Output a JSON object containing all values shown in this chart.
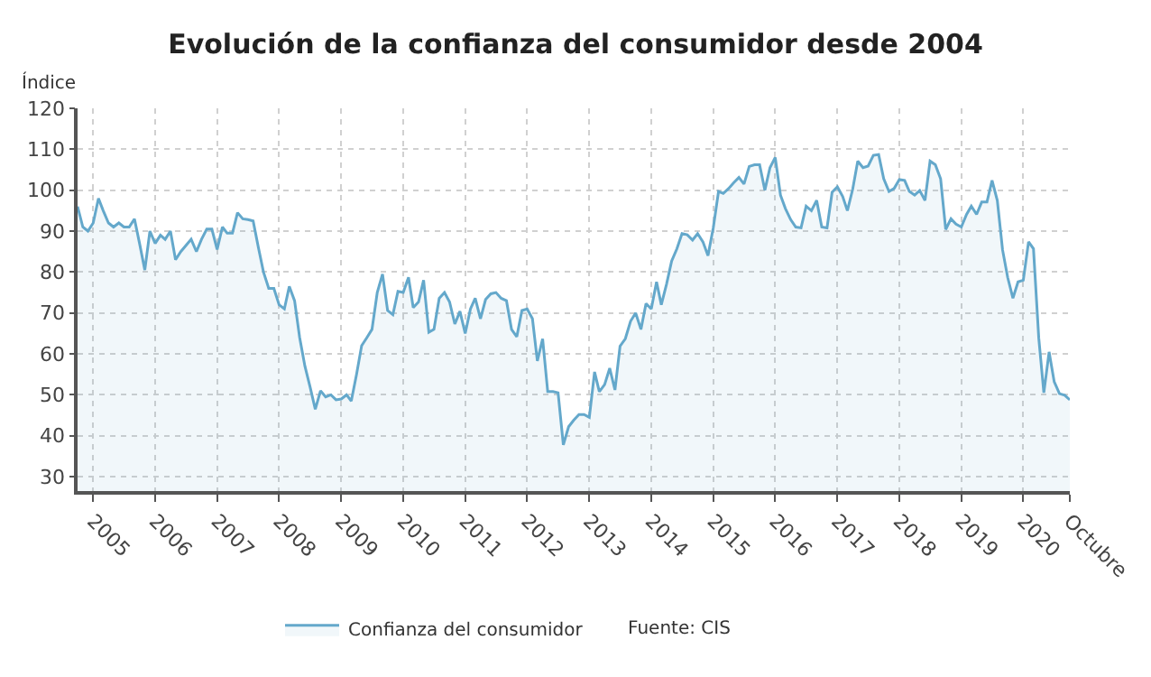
{
  "chart_data": {
    "type": "area",
    "title": "Evolución de la confianza del consumidor desde 2004",
    "ylabel": "Índice",
    "x": [
      "2004-10",
      "2004-11",
      "2004-12",
      "2005-01",
      "2005-02",
      "2005-03",
      "2005-04",
      "2005-05",
      "2005-06",
      "2005-07",
      "2005-08",
      "2005-09",
      "2005-10",
      "2005-11",
      "2005-12",
      "2006-01",
      "2006-02",
      "2006-03",
      "2006-04",
      "2006-05",
      "2006-06",
      "2006-07",
      "2006-08",
      "2006-09",
      "2006-10",
      "2006-11",
      "2006-12",
      "2007-01",
      "2007-02",
      "2007-03",
      "2007-04",
      "2007-05",
      "2007-06",
      "2007-07",
      "2007-08",
      "2007-09",
      "2007-10",
      "2007-11",
      "2007-12",
      "2008-01",
      "2008-02",
      "2008-03",
      "2008-04",
      "2008-05",
      "2008-06",
      "2008-07",
      "2008-08",
      "2008-09",
      "2008-10",
      "2008-11",
      "2008-12",
      "2009-01",
      "2009-02",
      "2009-03",
      "2009-04",
      "2009-05",
      "2009-06",
      "2009-07",
      "2009-08",
      "2009-09",
      "2009-10",
      "2009-11",
      "2009-12",
      "2010-01",
      "2010-02",
      "2010-03",
      "2010-04",
      "2010-05",
      "2010-06",
      "2010-07",
      "2010-08",
      "2010-09",
      "2010-10",
      "2010-11",
      "2010-12",
      "2011-01",
      "2011-02",
      "2011-03",
      "2011-04",
      "2011-05",
      "2011-06",
      "2011-07",
      "2011-08",
      "2011-09",
      "2011-10",
      "2011-11",
      "2011-12",
      "2012-01",
      "2012-02",
      "2012-03",
      "2012-04",
      "2012-05",
      "2012-06",
      "2012-07",
      "2012-08",
      "2012-09",
      "2012-10",
      "2012-11",
      "2012-12",
      "2013-01",
      "2013-02",
      "2013-03",
      "2013-04",
      "2013-05",
      "2013-06",
      "2013-07",
      "2013-08",
      "2013-09",
      "2013-10",
      "2013-11",
      "2013-12",
      "2014-01",
      "2014-02",
      "2014-03",
      "2014-04",
      "2014-05",
      "2014-06",
      "2014-07",
      "2014-08",
      "2014-09",
      "2014-10",
      "2014-11",
      "2014-12",
      "2015-01",
      "2015-02",
      "2015-03",
      "2015-04",
      "2015-05",
      "2015-06",
      "2015-07",
      "2015-08",
      "2015-09",
      "2015-10",
      "2015-11",
      "2015-12",
      "2016-01",
      "2016-02",
      "2016-03",
      "2016-04",
      "2016-05",
      "2016-06",
      "2016-07",
      "2016-08",
      "2016-09",
      "2016-10",
      "2016-11",
      "2016-12",
      "2017-01",
      "2017-02",
      "2017-03",
      "2017-04",
      "2017-05",
      "2017-06",
      "2017-07",
      "2017-08",
      "2017-09",
      "2017-10",
      "2017-11",
      "2017-12",
      "2018-01",
      "2018-02",
      "2018-03",
      "2018-04",
      "2018-05",
      "2018-06",
      "2018-07",
      "2018-08",
      "2018-09",
      "2018-10",
      "2018-11",
      "2018-12",
      "2019-01",
      "2019-02",
      "2019-03",
      "2019-04",
      "2019-05",
      "2019-06",
      "2019-07",
      "2019-08",
      "2019-09",
      "2019-10",
      "2019-11",
      "2019-12",
      "2020-01",
      "2020-02",
      "2020-03",
      "2020-04",
      "2020-05",
      "2020-06",
      "2020-07",
      "2020-08",
      "2020-09",
      "2020-10"
    ],
    "series": [
      {
        "name": "Confianza del consumidor",
        "color": "#64a8cb",
        "values": [
          96,
          91,
          90,
          92,
          98,
          95,
          92,
          91,
          92,
          91,
          91,
          93,
          87,
          80.5,
          90,
          87,
          89,
          88,
          90,
          83,
          85,
          86.5,
          88,
          85,
          88,
          90.5,
          90.5,
          85.5,
          91,
          89.5,
          89.5,
          94.5,
          93,
          92.8,
          92.5,
          86,
          80,
          76,
          76,
          72,
          71,
          76.5,
          73,
          64,
          57,
          52,
          46.5,
          51,
          49.5,
          50,
          48.8,
          49,
          50,
          48.5,
          55,
          62,
          64,
          66,
          75,
          79.5,
          70.6,
          69.6,
          75.3,
          75,
          78.7,
          71.3,
          72.7,
          78,
          65.3,
          66,
          73.6,
          75,
          72.7,
          67.3,
          70.4,
          65,
          71,
          73.6,
          68.6,
          73.3,
          74.7,
          75,
          73.6,
          73,
          66,
          64.2,
          70.6,
          71,
          68.6,
          58.3,
          63.7,
          50.8,
          50.8,
          50.5,
          37.8,
          42.2,
          43.8,
          45.2,
          45.2,
          44.5,
          55.6,
          50.8,
          52.5,
          56.5,
          51.2,
          61.9,
          63.7,
          68,
          70,
          66,
          72.3,
          71,
          77.6,
          72,
          77.1,
          82.7,
          85.7,
          89.4,
          89.1,
          87.8,
          89.4,
          87.4,
          84,
          90.8,
          99.7,
          99.2,
          100.4,
          101.8,
          103.1,
          101.5,
          105.8,
          106.2,
          106.2,
          100,
          105.5,
          108,
          98.8,
          95.5,
          92.8,
          91,
          90.8,
          96.1,
          95,
          97.5,
          91,
          90.8,
          99.5,
          100.8,
          98.5,
          95,
          100.2,
          107.1,
          105.5,
          105.9,
          108.5,
          108.7,
          102.8,
          99.7,
          100.4,
          102.6,
          102.4,
          99.7,
          98.8,
          99.9,
          97.5,
          107.1,
          106.2,
          102.8,
          90.4,
          93,
          91.7,
          91,
          94.1,
          96.1,
          94.1,
          97.1,
          97.1,
          102.4,
          97.5,
          85.4,
          78.7,
          73.6,
          77.6,
          78,
          87.4,
          85.7,
          63.9,
          50.5,
          60.5,
          53.2,
          50.3,
          49.9,
          48.8
        ]
      }
    ],
    "xlim": [
      "2004-10",
      "2020-10"
    ],
    "xticks": [
      {
        "value": "2005-01",
        "label": "2005"
      },
      {
        "value": "2006-01",
        "label": "2006"
      },
      {
        "value": "2007-01",
        "label": "2007"
      },
      {
        "value": "2008-01",
        "label": "2008"
      },
      {
        "value": "2009-01",
        "label": "2009"
      },
      {
        "value": "2010-01",
        "label": "2010"
      },
      {
        "value": "2011-01",
        "label": "2011"
      },
      {
        "value": "2012-01",
        "label": "2012"
      },
      {
        "value": "2013-01",
        "label": "2013"
      },
      {
        "value": "2014-01",
        "label": "2014"
      },
      {
        "value": "2015-01",
        "label": "2015"
      },
      {
        "value": "2016-01",
        "label": "2016"
      },
      {
        "value": "2017-01",
        "label": "2017"
      },
      {
        "value": "2018-01",
        "label": "2018"
      },
      {
        "value": "2019-01",
        "label": "2019"
      },
      {
        "value": "2020-01",
        "label": "2020"
      },
      {
        "value": "2020-10",
        "label": "Octubre"
      }
    ],
    "ylim": [
      26.5,
      120
    ],
    "yticks": [
      30,
      40,
      50,
      60,
      70,
      80,
      90,
      100,
      110,
      120
    ],
    "grid": true,
    "legend": "bottom",
    "marker": "none",
    "line_style": "solid",
    "annotations": [
      "Fuente: CIS"
    ]
  }
}
